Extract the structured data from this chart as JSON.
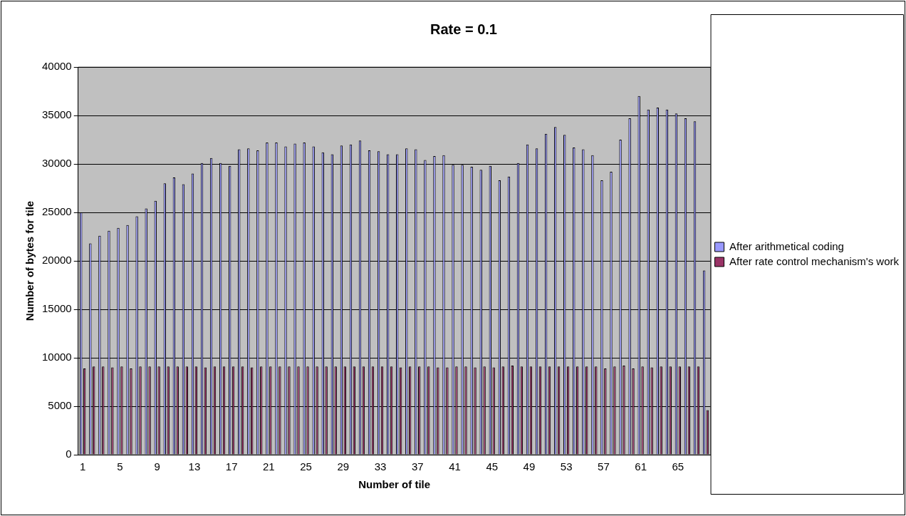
{
  "chart_data": {
    "type": "bar",
    "title": "Rate = 0.1",
    "xlabel": "Number of tile",
    "ylabel": "Number of bytes for tile",
    "categories": [
      "1",
      null,
      null,
      null,
      "5",
      null,
      null,
      null,
      "9",
      null,
      null,
      null,
      "13",
      null,
      null,
      null,
      "17",
      null,
      null,
      null,
      "21",
      null,
      null,
      null,
      "25",
      null,
      null,
      null,
      "29",
      null,
      null,
      null,
      "33",
      null,
      null,
      null,
      "37",
      null,
      null,
      null,
      "41",
      null,
      null,
      null,
      "45",
      null,
      null,
      null,
      "49",
      null,
      null,
      null,
      "53",
      null,
      null,
      null,
      "57",
      null,
      null,
      null,
      "61",
      null,
      null,
      null,
      "65",
      null,
      null,
      null
    ],
    "series": [
      {
        "name": "After arithmetical coding",
        "color": "#9999ff",
        "values": [
          25000,
          21800,
          22600,
          23100,
          23400,
          23700,
          24600,
          25400,
          26200,
          28000,
          28600,
          27900,
          29000,
          30100,
          30600,
          30100,
          29800,
          31500,
          31600,
          31400,
          32200,
          32200,
          31800,
          32100,
          32200,
          31800,
          31200,
          31000,
          31900,
          32000,
          32400,
          31400,
          31300,
          31000,
          31000,
          31600,
          31500,
          30400,
          30800,
          30900,
          29900,
          29900,
          29700,
          29400,
          29800,
          28300,
          28700,
          30100,
          32000,
          31600,
          33100,
          33800,
          33000,
          31700,
          31500,
          30900,
          28300,
          29200,
          32500,
          34700,
          37000,
          35600,
          35800,
          35600,
          35200,
          34700,
          34400,
          19000
        ]
      },
      {
        "name": "After rate control mechanism's work",
        "color": "#993366",
        "values": [
          8900,
          9100,
          9100,
          9000,
          9100,
          8900,
          9100,
          9100,
          9100,
          9100,
          9100,
          9100,
          9100,
          9000,
          9100,
          9100,
          9100,
          9100,
          9000,
          9100,
          9100,
          9100,
          9100,
          9100,
          9100,
          9100,
          9100,
          9100,
          9100,
          9100,
          9100,
          9100,
          9100,
          9100,
          9000,
          9100,
          9100,
          9100,
          9000,
          9000,
          9100,
          9100,
          9000,
          9100,
          9000,
          9100,
          9200,
          9100,
          9100,
          9100,
          9100,
          9100,
          9100,
          9100,
          9100,
          9100,
          8900,
          9100,
          9200,
          8900,
          9100,
          9000,
          9100,
          9100,
          9100,
          9100,
          9100,
          4600
        ]
      }
    ],
    "ylim": [
      0,
      40000
    ],
    "yticks": [
      0,
      5000,
      10000,
      15000,
      20000,
      25000,
      30000,
      35000,
      40000
    ],
    "grid": "y",
    "legend": "right"
  }
}
